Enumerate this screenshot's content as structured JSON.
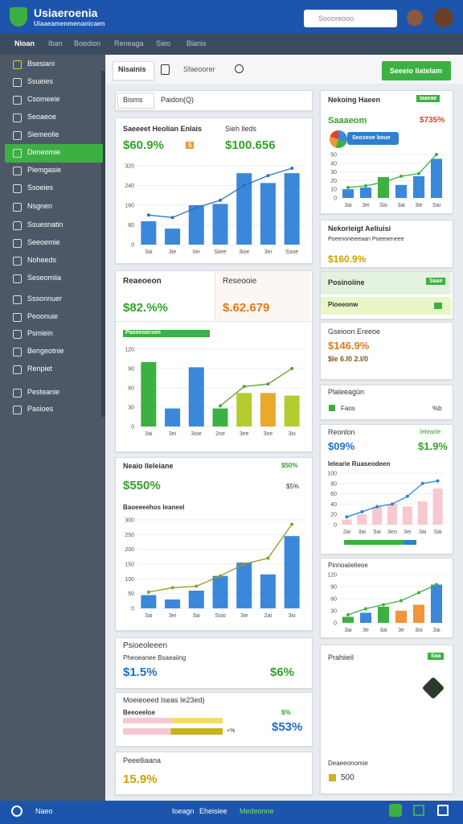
{
  "header": {
    "title": "Usiaeroenia",
    "subtitle": "Uiaaeamenmenanicaen",
    "search": "Soooreooo"
  },
  "nav": {
    "items": [
      "Nioan",
      "Iban",
      "Boedion",
      "Reneaga",
      "Sieo",
      "Bianis"
    ]
  },
  "sidebar": {
    "items": [
      "Bsesiani",
      "Ssueies",
      "Csomeeie",
      "Seoaeoe",
      "Siemeolie",
      "Deneomie",
      "Piemgasie",
      "Ssoeies",
      "Nsgnen",
      "Ssuesnatin",
      "Seeoemie",
      "Noheeds",
      "Seseomiia",
      "Sssonnuer",
      "Peoonuie",
      "Psmiein",
      "Bengeotnie",
      "Renpiet",
      "Pesteanie",
      "Pasioes"
    ],
    "active": 5
  },
  "toolbar": {
    "tabs": [
      "Nisainis",
      "Sfaeoorer"
    ],
    "button": "Seeeio liatelam"
  },
  "left": {
    "filter": {
      "tabs": [
        "Bisms",
        "Paidon(Q)"
      ]
    },
    "revenue": {
      "label": "Saeeeet Heolian Enlais",
      "value": "$60.9%",
      "badge": "5",
      "label2": "Sieh lleds",
      "value2": "$100.656",
      "chart": {
        "type": "bar",
        "categories": [
          "3ai",
          "3ie",
          "Iiei",
          "Siiee",
          "3ioe",
          "3ei",
          "Ssoe"
        ],
        "ylim": [
          0,
          320
        ],
        "yticks": [
          0,
          80,
          160,
          240,
          320
        ],
        "series": [
          {
            "type": "bar",
            "color": "#3b88db",
            "values": [
              95,
              65,
              160,
              165,
              290,
              250,
              290
            ]
          },
          {
            "type": "line",
            "color": "#2f6fc0",
            "values": [
              120,
              110,
              150,
              180,
              240,
              280,
              310
            ]
          }
        ]
      }
    },
    "compare": {
      "label": "Reaeoeon",
      "value": "$82.%%",
      "label2": "Reseooie",
      "value2": "$.62.679",
      "tag": "Paoeeoorsen",
      "chart": {
        "type": "bar",
        "categories": [
          "3ai",
          "3ei",
          "3ioe",
          "2oe",
          "3ee",
          "3oe",
          "3io"
        ],
        "ylim": [
          0,
          120
        ],
        "yticks": [
          0,
          30,
          60,
          90,
          120
        ],
        "series": [
          {
            "type": "bar",
            "colors": [
              "#3cb043",
              "#3b88db",
              "#3b88db",
              "#3cb043",
              "#b5cc2e",
              "#e9a92c",
              "#b5cc2e"
            ],
            "values": [
              100,
              28,
              92,
              28,
              52,
              52,
              48
            ]
          },
          {
            "type": "line",
            "color": "#5aa02c",
            "values": [
              null,
              null,
              null,
              32,
              62,
              66,
              90
            ]
          }
        ]
      }
    },
    "growth": {
      "label": "Neaio Ileleiane",
      "side": "$50%",
      "value": "$550%",
      "side2": "$5%",
      "sub": "Baoeeeehos Ieaneel",
      "chart": {
        "type": "bar",
        "categories": [
          "3ai",
          "3ei",
          "3ai",
          "Ssio",
          "3ie",
          "2ai",
          "3io"
        ],
        "ylim": [
          0,
          300
        ],
        "yticks": [
          0,
          50,
          100,
          150,
          200,
          250,
          300
        ],
        "series": [
          {
            "type": "bar",
            "color": "#3b88db",
            "values": [
              45,
              30,
              60,
              110,
              155,
              115,
              245
            ]
          },
          {
            "type": "line",
            "color": "#9a9a1e",
            "values": [
              55,
              70,
              75,
              110,
              150,
              170,
              285
            ]
          }
        ]
      }
    },
    "summary": {
      "title": "Psioeoleeen",
      "label": "Pheoeanee Bsaeaiing",
      "value": "$1.5%",
      "value2": "$6%"
    },
    "metered": {
      "label": "Moeieoeed Iseas Ie23ed)",
      "sub": "Beeoeeloe",
      "sub2": "$%",
      "value": "$53%",
      "progress_label": "+%"
    },
    "final": {
      "label": "Peeelliaana",
      "value": "15.9%"
    }
  },
  "right": {
    "trend": {
      "title": "Nekoing Haeen",
      "badge": "Iaaeae",
      "label": "Saaaeom",
      "value": "$735%",
      "pill": "Seoseoe boue",
      "chart": {
        "type": "bar",
        "categories": [
          "3ai",
          "3ei",
          "Sio",
          "3ai",
          "3ie",
          "Sai"
        ],
        "ylim": [
          0,
          50
        ],
        "yticks": [
          0,
          10,
          20,
          30,
          40,
          50
        ],
        "series": [
          {
            "type": "bar",
            "colors": [
              "#3b88db",
              "#3b88db",
              "#3cb043",
              "#3b88db",
              "#3b88db",
              "#3b88db"
            ],
            "values": [
              10,
              12,
              24,
              15,
              25,
              45
            ]
          },
          {
            "type": "line",
            "color": "#3cb043",
            "values": [
              12,
              14,
              18,
              25,
              28,
              50
            ]
          }
        ]
      }
    },
    "analysis": {
      "title": "Nekorieigt Aeliuisi",
      "sub": "Poeenoneieeaan Poeeoeneee",
      "value": "$160.9%"
    },
    "position": {
      "title": "Posinoiine",
      "badge": "Saae",
      "row": "Pioeeonw"
    },
    "green": {
      "title": "Gseioon Ereeoe",
      "value": "$146.9%",
      "sub": "$Ie 6.I0 2.I/0"
    },
    "plan": {
      "title": "Plaleeagün",
      "item": "Faos",
      "side": "%b"
    },
    "region": {
      "label": "Reonlon",
      "side": "Ielearie",
      "value": "$09%",
      "value2": "$1.9%",
      "sub": "Ielearie Ruaseodeen",
      "chart": {
        "type": "bar",
        "categories": [
          "2ai",
          "3ai",
          "5ai",
          "3eo",
          "3ei",
          "3ai",
          "Sai"
        ],
        "ylim": [
          0,
          100
        ],
        "yticks": [
          0,
          20,
          40,
          60,
          80,
          100
        ],
        "series": [
          {
            "type": "bar",
            "color": "#f6c9cf",
            "values": [
              10,
              20,
              35,
              40,
              35,
              45,
              70
            ]
          },
          {
            "type": "line",
            "color": "#2f7fcf",
            "values": [
              15,
              25,
              35,
              40,
              55,
              80,
              85
            ]
          }
        ]
      }
    },
    "mix": {
      "title": "Pinnoaiielieoe",
      "chart": {
        "type": "bar",
        "categories": [
          "3ai",
          "3e",
          "3ai",
          "3e",
          "3oi",
          "3ai"
        ],
        "ylim": [
          0,
          120
        ],
        "yticks": [
          0,
          30,
          60,
          90,
          120
        ],
        "series": [
          {
            "type": "bar",
            "colors": [
              "#3cb043",
              "#3b88db",
              "#3cb043",
              "#f0953a",
              "#f0953a",
              "#3b88db"
            ],
            "values": [
              15,
              25,
              40,
              30,
              45,
              95
            ]
          },
          {
            "type": "line",
            "color": "#3cb043",
            "values": [
              20,
              35,
              45,
              55,
              75,
              95
            ]
          }
        ]
      }
    },
    "profile": {
      "title": "Prahiieil",
      "badge": "Saa",
      "label": "Deaeeonomie",
      "value": "500"
    }
  },
  "footer": {
    "items": [
      "Naeo",
      "Ioeagn",
      "Eheisiee",
      "Medeonne"
    ]
  }
}
